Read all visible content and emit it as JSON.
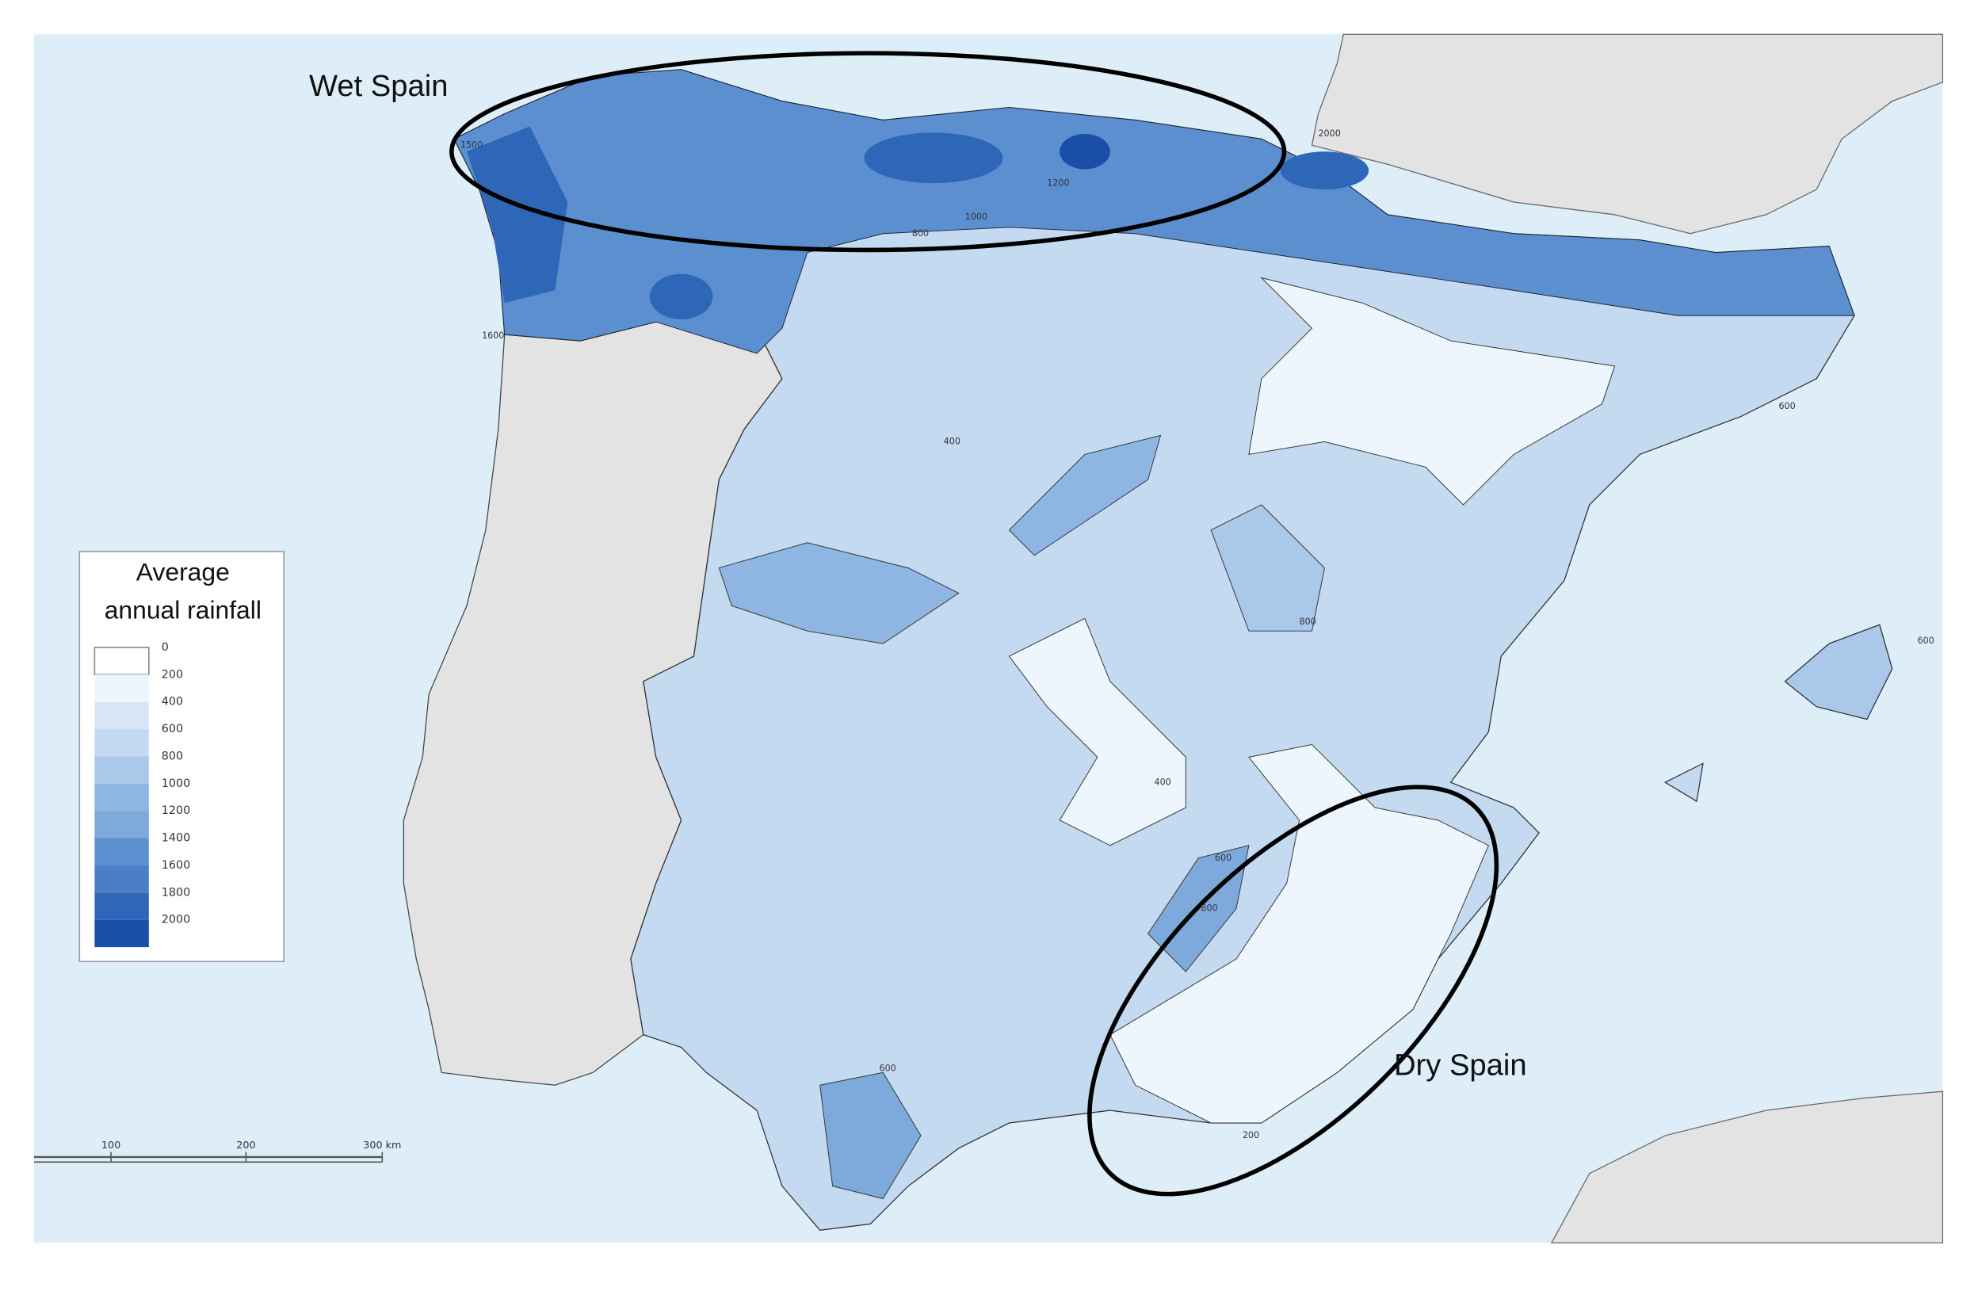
{
  "map": {
    "annotations": {
      "wet": "Wet Spain",
      "dry": "Dry Spain"
    },
    "legend": {
      "title_lines": [
        "Average",
        "annual rainfall"
      ],
      "items": [
        {
          "label": "0",
          "color": "#ffffff"
        },
        {
          "label": "200",
          "color": "#eef6fd"
        },
        {
          "label": "400",
          "color": "#d6e6f6"
        },
        {
          "label": "600",
          "color": "#c4daf0"
        },
        {
          "label": "800",
          "color": "#a9c8ea"
        },
        {
          "label": "1000",
          "color": "#8fb5e2"
        },
        {
          "label": "1200",
          "color": "#7ea9db"
        },
        {
          "label": "1400",
          "color": "#5b8fd0"
        },
        {
          "label": "1600",
          "color": "#4a7fc8"
        },
        {
          "label": "1800",
          "color": "#2f67b8"
        },
        {
          "label": "2000",
          "color": "#1a4fa8"
        }
      ]
    },
    "scale_bar": [
      "100",
      "200",
      "300 km"
    ],
    "contour_labels": [
      "1500",
      "1600",
      "800",
      "1000",
      "1200",
      "2000",
      "600",
      "400",
      "800",
      "600",
      "400",
      "600",
      "800",
      "600",
      "200"
    ]
  }
}
